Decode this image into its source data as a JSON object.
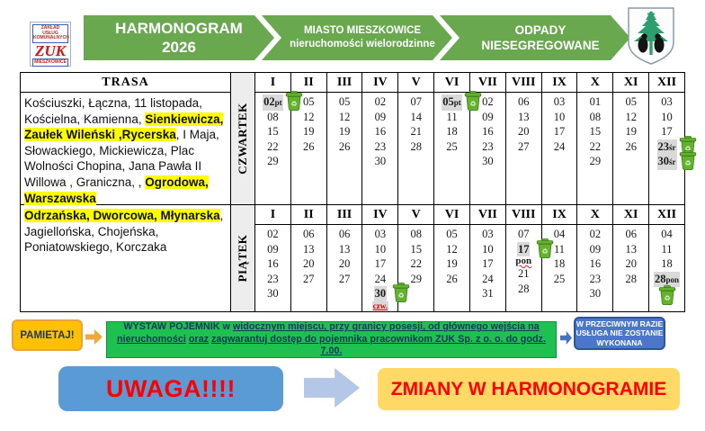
{
  "header": {
    "logo": {
      "top": "ZAKŁAD USŁUG KOMUNALNYCH",
      "zuk": "ZUK",
      "bottom": "MIESZKOWICE"
    },
    "banners": [
      {
        "line1": "HARMONOGRAM",
        "line2": "2026"
      },
      {
        "line1": "MIASTO MIESZKOWICE",
        "line2": "nieruchomości wielorodzinne"
      },
      {
        "line1": "ODPADY",
        "line2": "NIESEGREGOWANE"
      }
    ],
    "coat_of_arms": "herb-mieszkowice-tree-with-bears"
  },
  "colors": {
    "banner_green": "#69A84F",
    "street_highlight": "#FFFF00",
    "moved_date_bg": "#D9D9D9",
    "bin_green": "#64B32E",
    "reminder_orange": "#FFC000",
    "message_green": "#1EC14F",
    "warning_blue": "#4B76C9",
    "uwaga_blue": "#5B9BD5",
    "arrow_light_blue": "#B4C7E7",
    "zmiany_yellow": "#FFD966",
    "alert_red": "#FF0000",
    "navy_text": "#1F3864"
  },
  "table": {
    "trasa_header": "TRASA",
    "months": [
      "I",
      "II",
      "III",
      "IV",
      "V",
      "VI",
      "VII",
      "VIII",
      "IX",
      "X",
      "XI",
      "XII"
    ],
    "groups": [
      {
        "day": "CZWARTEK",
        "route": [
          {
            "text": "Kościuszki, Łączna, 11 listopada, Kościelna, Kamienna, ",
            "hl": false
          },
          {
            "text": "Sienkiewicza, Zaułek Wileński ,Rycerska",
            "hl": true
          },
          {
            "text": ", I Maja, Słowackiego, Mickiewicza, Plac Wolności Chopina, Jana Pawła II Willowa , Graniczna, , ",
            "hl": false
          },
          {
            "text": "Ogrodowa, Warszawska",
            "hl": true
          }
        ],
        "schedule": [
          [
            {
              "d": "02",
              "suffix": "pt",
              "moved": true,
              "bin": "right"
            },
            "08",
            "15",
            "22",
            "29"
          ],
          [
            "05",
            "12",
            "19",
            "26"
          ],
          [
            "05",
            "12",
            "19",
            "26"
          ],
          [
            "02",
            "09",
            "16",
            "23",
            "30"
          ],
          [
            "07",
            "14",
            "21",
            "28"
          ],
          [
            {
              "d": "05",
              "suffix": "pt",
              "moved": true,
              "bin": "right"
            },
            "11",
            "18",
            "25"
          ],
          [
            "02",
            "09",
            "16",
            "23",
            "30"
          ],
          [
            "06",
            "13",
            "20",
            "27"
          ],
          [
            "03",
            "10",
            "17",
            "24"
          ],
          [
            "01",
            "08",
            "15",
            "22",
            "29"
          ],
          [
            "05",
            "12",
            "19",
            "26"
          ],
          [
            "03",
            "10",
            "17",
            {
              "d": "23",
              "suffix": "śr",
              "moved": true,
              "bin": "right"
            },
            {
              "d": "30",
              "suffix": "śr",
              "moved": true,
              "bin": "right"
            }
          ]
        ]
      },
      {
        "day": "PIĄTEK",
        "route": [
          {
            "text": "Odrzańska, Dworcowa, Młynarska",
            "hl": true
          },
          {
            "text": ", Jagiellońska,  Chojeńska, Poniatowskiego, Korczaka",
            "hl": false
          }
        ],
        "schedule": [
          [
            "02",
            "09",
            "16",
            "23",
            "30"
          ],
          [
            "06",
            "13",
            "20",
            "27"
          ],
          [
            "06",
            "13",
            "20",
            "27"
          ],
          [
            "03",
            "10",
            "17",
            "24",
            {
              "d": "30",
              "moved": true,
              "bin": "right",
              "note": "czw.",
              "note_style": "red"
            }
          ],
          [
            "08",
            "15",
            "22",
            "29"
          ],
          [
            "05",
            "12",
            "19",
            "26"
          ],
          [
            "03",
            "10",
            "17",
            "24",
            "31"
          ],
          [
            "07",
            {
              "d": "17",
              "moved": true,
              "bin": "right",
              "note": "pon",
              "note_style": "wavy"
            },
            "21",
            "28"
          ],
          [
            "04",
            "11",
            "18",
            "25"
          ],
          [
            "02",
            "09",
            "16",
            "23",
            "30"
          ],
          [
            "06",
            "13",
            "20",
            "28"
          ],
          [
            "04",
            "11",
            "18",
            {
              "d": "28",
              "suffix": "pon",
              "moved": true,
              "bin": "below"
            }
          ]
        ]
      }
    ]
  },
  "reminder": {
    "badge": "PAMIETAJ!",
    "message_segments": [
      {
        "text": "WYSTAW POJEMNIK w ",
        "u": false
      },
      {
        "text": "widocznym miejscu, przy granicy posesji, od głównego wejścia na nieruchomości",
        "u": true
      },
      {
        "text": " ",
        "u": false
      },
      {
        "text": "oraz",
        "u": true
      },
      {
        "text": " ",
        "u": false
      },
      {
        "text": "zagwarantuj dostęp do pojemnika pracownikom ZUK Sp. z o. o. do godz. 7.00.",
        "u": true
      }
    ],
    "warning": [
      "W PRZECIWNYM RAZIE",
      "USŁUGA NIE ZOSTANIE",
      "WYKONANA"
    ]
  },
  "notice": {
    "uwaga": "UWAGA!!!!",
    "zmiany": "ZMIANY W HARMONOGRAMIE"
  }
}
